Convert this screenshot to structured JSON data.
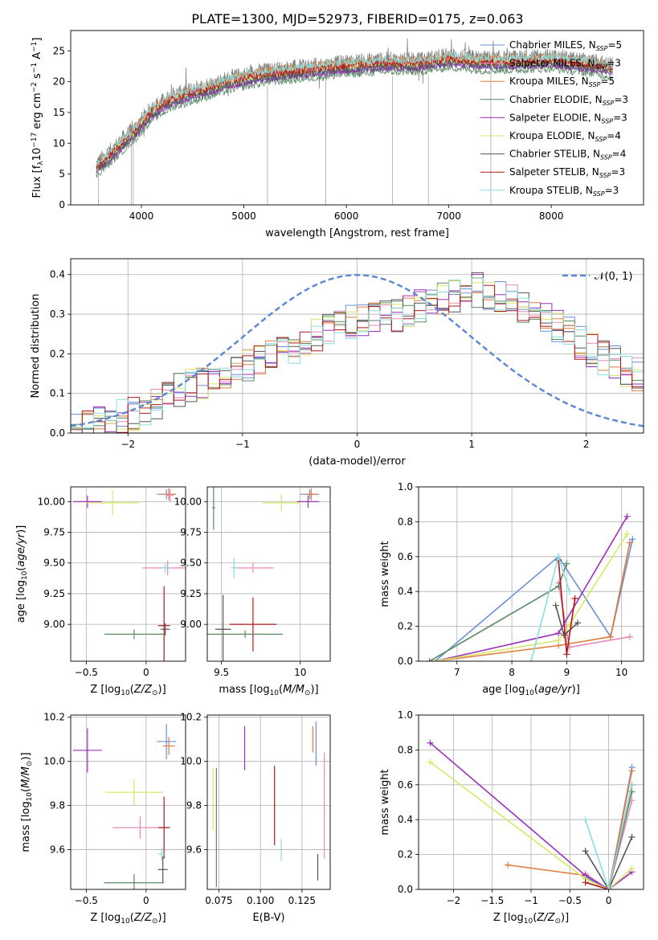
{
  "figure": {
    "title": "PLATE=1300, MJD=52973, FIBERID=0175, z=0.063"
  },
  "series": [
    {
      "name": "Chabrier MILES",
      "nssp": "5",
      "color": "#6a8fd8"
    },
    {
      "name": "Salpeter MILES",
      "nssp": "3",
      "color": "#e68ab8"
    },
    {
      "name": "Kroupa MILES",
      "nssp": "5",
      "color": "#e07b39"
    },
    {
      "name": "Chabrier ELODIE",
      "nssp": "3",
      "color": "#5a8a64"
    },
    {
      "name": "Salpeter ELODIE",
      "nssp": "3",
      "color": "#9b30b8"
    },
    {
      "name": "Kroupa ELODIE",
      "nssp": "4",
      "color": "#d6e86a"
    },
    {
      "name": "Chabrier STELIB",
      "nssp": "4",
      "color": "#555555"
    },
    {
      "name": "Salpeter STELIB",
      "nssp": "3",
      "color": "#b01818"
    },
    {
      "name": "Kroupa STELIB",
      "nssp": "3",
      "color": "#88dede"
    }
  ],
  "chart_data": [
    {
      "id": "spectrum",
      "type": "line",
      "title": "PLATE=1300, MJD=52973, FIBERID=0175, z=0.063",
      "xlabel": "wavelength [Angstrom, rest frame]",
      "ylabel": "Flux [f",
      "xlim": [
        3310,
        8900
      ],
      "ylim": [
        0,
        28.3
      ],
      "xticks": [
        4000,
        5000,
        6000,
        7000,
        8000
      ],
      "yticks": [
        0,
        5,
        10,
        15,
        20,
        25
      ],
      "legend": "upper right",
      "data_color": "#808080",
      "continuum": {
        "x": [
          3560,
          3700,
          3850,
          3950,
          4100,
          4300,
          4600,
          4900,
          5200,
          5500,
          5800,
          6100,
          6400,
          6700,
          7000,
          7300,
          7600,
          8000,
          8400,
          8600
        ],
        "y": [
          6.5,
          8.5,
          11,
          12.5,
          15.5,
          17.5,
          19,
          20.5,
          21.5,
          22,
          22.5,
          23,
          23.3,
          23.2,
          24,
          23.5,
          23.5,
          23.8,
          23,
          22.5
        ]
      },
      "spikes": [
        3580,
        3900,
        3920,
        5230,
        5800,
        6450,
        6800,
        7410
      ]
    },
    {
      "id": "residuals",
      "type": "line",
      "xlabel": "(data-model)/error",
      "ylabel": "Normed distribution",
      "xlim": [
        -2.5,
        2.5
      ],
      "ylim": [
        0,
        0.44
      ],
      "xticks": [
        -2,
        -1,
        0,
        1,
        2
      ],
      "yticks": [
        0.0,
        0.1,
        0.2,
        0.3,
        0.4
      ],
      "legend": "upper right",
      "normal_label": "𝒩(0, 1)",
      "normal_color": "#5b86d6",
      "hist_bin_width": 0.1,
      "hist_base": [
        0.03,
        0.032,
        0.035,
        0.04,
        0.045,
        0.05,
        0.06,
        0.08,
        0.1,
        0.11,
        0.12,
        0.13,
        0.14,
        0.155,
        0.165,
        0.175,
        0.185,
        0.19,
        0.2,
        0.22,
        0.24,
        0.25,
        0.26,
        0.27,
        0.28,
        0.29,
        0.295,
        0.3,
        0.3,
        0.31,
        0.32,
        0.33,
        0.34,
        0.35,
        0.36,
        0.36,
        0.35,
        0.34,
        0.33,
        0.32,
        0.3,
        0.29,
        0.27,
        0.25,
        0.23,
        0.21,
        0.19,
        0.18,
        0.16,
        0.15
      ]
    },
    {
      "id": "age-vs-Z",
      "type": "scatter",
      "xlabel": "Z [log10(Z/Z⊙)]",
      "ylabel": "age  [log10(age/yr)]",
      "xlim": [
        -0.63,
        0.33
      ],
      "ylim": [
        8.7,
        10.12
      ],
      "xticks": [
        -0.5,
        0.0
      ],
      "yticks": [
        9.0,
        9.25,
        9.5,
        9.75,
        10.0
      ],
      "points": [
        {
          "s": 4,
          "x": -0.49,
          "y": 10.0,
          "xerr": 0.12,
          "yerr": 0.05
        },
        {
          "s": 5,
          "x": -0.28,
          "y": 9.99,
          "xerr": 0.22,
          "yerr": 0.1
        },
        {
          "s": 0,
          "x": 0.17,
          "y": 10.06,
          "xerr": 0.08,
          "yerr": 0.04
        },
        {
          "s": 2,
          "x": 0.19,
          "y": 10.06,
          "xerr": 0.06,
          "yerr": 0.05
        },
        {
          "s": 1,
          "x": 0.2,
          "y": 10.05,
          "xerr": 0.03,
          "yerr": 0.05
        },
        {
          "s": 1,
          "x": 0.18,
          "y": 9.46,
          "xerr": 0.21,
          "yerr": 0.06
        },
        {
          "s": 8,
          "x": 0.16,
          "y": 9.46,
          "xerr": 0.03,
          "yerr": 0.04
        },
        {
          "s": 7,
          "x": 0.15,
          "y": 8.99,
          "xerr": 0.05,
          "yerr": 0.32
        },
        {
          "s": 6,
          "x": 0.16,
          "y": 8.96,
          "xerr": 0.04,
          "yerr": 0.05
        },
        {
          "s": 3,
          "x": -0.1,
          "y": 8.92,
          "xerr": 0.25,
          "yerr": 0.04
        }
      ]
    },
    {
      "id": "age-vs-mass",
      "type": "scatter",
      "xlabel": "mass [log10(M/M⊙)]",
      "ylabel": "",
      "xlim": [
        9.41,
        10.19
      ],
      "ylim": [
        8.7,
        10.12
      ],
      "xticks": [
        9.5,
        10.0
      ],
      "yticks": [
        9.0,
        9.25,
        9.5,
        9.75,
        10.0
      ],
      "points": [
        {
          "s": 3,
          "x": 9.45,
          "y": 9.95,
          "xerr": 0.01,
          "yerr": 0.18
        },
        {
          "s": 5,
          "x": 9.88,
          "y": 9.99,
          "xerr": 0.12,
          "yerr": 0.07
        },
        {
          "s": 4,
          "x": 10.05,
          "y": 10.0,
          "xerr": 0.07,
          "yerr": 0.05
        },
        {
          "s": 0,
          "x": 10.06,
          "y": 10.06,
          "xerr": 0.06,
          "yerr": 0.04
        },
        {
          "s": 2,
          "x": 10.07,
          "y": 10.06,
          "xerr": 0.04,
          "yerr": 0.05
        },
        {
          "s": 1,
          "x": 9.7,
          "y": 9.46,
          "xerr": 0.13,
          "yerr": 0.04
        },
        {
          "s": 8,
          "x": 9.58,
          "y": 9.46,
          "xerr": 0.02,
          "yerr": 0.08
        },
        {
          "s": 7,
          "x": 9.7,
          "y": 9.0,
          "xerr": 0.15,
          "yerr": 0.22
        },
        {
          "s": 6,
          "x": 9.51,
          "y": 8.96,
          "xerr": 0.05,
          "yerr": 0.28
        },
        {
          "s": 3,
          "x": 9.65,
          "y": 8.92,
          "xerr": 0.24,
          "yerr": 0.03
        }
      ]
    },
    {
      "id": "weight-vs-age",
      "type": "line",
      "xlabel": "age  [log10(age/yr)]",
      "ylabel": "mass weight",
      "xlim": [
        6.3,
        10.4
      ],
      "ylim": [
        0,
        1.0
      ],
      "xticks": [
        7,
        8,
        9,
        10
      ],
      "yticks": [
        0.0,
        0.2,
        0.4,
        0.6,
        0.8,
        1.0
      ],
      "series_points": [
        {
          "s": 0,
          "x": [
            6.6,
            8.85,
            9.8,
            10.2
          ],
          "y": [
            0.0,
            0.6,
            0.14,
            0.7
          ]
        },
        {
          "s": 1,
          "x": [
            8.85,
            9.05,
            10.15
          ],
          "y": [
            0.45,
            0.08,
            0.14
          ]
        },
        {
          "s": 2,
          "x": [
            6.6,
            8.85,
            9.8,
            10.15
          ],
          "y": [
            0.0,
            0.09,
            0.14,
            0.68
          ]
        },
        {
          "s": 3,
          "x": [
            6.5,
            8.85,
            9.0
          ],
          "y": [
            0.0,
            0.43,
            0.56
          ]
        },
        {
          "s": 4,
          "x": [
            6.6,
            8.85,
            10.1
          ],
          "y": [
            0.0,
            0.16,
            0.83
          ]
        },
        {
          "s": 5,
          "x": [
            6.6,
            8.85,
            9.05,
            10.1
          ],
          "y": [
            0.0,
            0.12,
            0.21,
            0.73
          ]
        },
        {
          "s": 6,
          "x": [
            8.8,
            8.95,
            9.2
          ],
          "y": [
            0.32,
            0.15,
            0.22
          ]
        },
        {
          "s": 7,
          "x": [
            8.85,
            9.0,
            9.15
          ],
          "y": [
            0.58,
            0.04,
            0.36
          ]
        },
        {
          "s": 8,
          "x": [
            8.35,
            8.85,
            9.05
          ],
          "y": [
            0.0,
            0.6,
            0.4
          ]
        }
      ]
    },
    {
      "id": "mass-vs-Z",
      "type": "scatter",
      "xlabel": "Z [log10(Z/Z⊙)]",
      "ylabel": "mass [log10(M/M⊙)]",
      "xlim": [
        -0.63,
        0.33
      ],
      "ylim": [
        9.42,
        10.21
      ],
      "xticks": [
        -0.5,
        0.0
      ],
      "yticks": [
        9.6,
        9.8,
        10.0,
        10.2
      ],
      "points": [
        {
          "s": 4,
          "x": -0.49,
          "y": 10.05,
          "xerr": 0.12,
          "yerr": 0.1
        },
        {
          "s": 0,
          "x": 0.17,
          "y": 10.09,
          "xerr": 0.08,
          "yerr": 0.08
        },
        {
          "s": 2,
          "x": 0.19,
          "y": 10.07,
          "xerr": 0.05,
          "yerr": 0.04
        },
        {
          "s": 5,
          "x": -0.1,
          "y": 9.86,
          "xerr": 0.24,
          "yerr": 0.06
        },
        {
          "s": 1,
          "x": -0.05,
          "y": 9.7,
          "xerr": 0.23,
          "yerr": 0.05
        },
        {
          "s": 7,
          "x": 0.15,
          "y": 9.7,
          "xerr": 0.05,
          "yerr": 0.14
        },
        {
          "s": 8,
          "x": 0.13,
          "y": 9.58,
          "xerr": 0.03,
          "yerr": 0.03
        },
        {
          "s": 6,
          "x": 0.14,
          "y": 9.51,
          "xerr": 0.04,
          "yerr": 0.06
        },
        {
          "s": 3,
          "x": -0.1,
          "y": 9.45,
          "xerr": 0.25,
          "yerr": 0.04
        }
      ]
    },
    {
      "id": "mass-vs-EBV",
      "type": "scatter",
      "xlabel": "E(B-V)",
      "ylabel": "",
      "xlim": [
        0.068,
        0.142
      ],
      "ylim": [
        9.42,
        10.21
      ],
      "xticks": [
        0.075,
        0.1,
        0.125
      ],
      "xtick_labels": [
        "0.075",
        "0.100",
        "0.125"
      ],
      "yticks": [
        9.6,
        9.8,
        10.0,
        10.2
      ],
      "points": [
        {
          "s": 5,
          "x": 0.0715,
          "y": 9.83,
          "xerr": 0,
          "yerr": 0.14
        },
        {
          "s": 3,
          "x": 0.0735,
          "y": 9.7,
          "xerr": 0,
          "yerr": 0.27
        },
        {
          "s": 4,
          "x": 0.0905,
          "y": 10.06,
          "xerr": 0,
          "yerr": 0.1
        },
        {
          "s": 7,
          "x": 0.1085,
          "y": 9.8,
          "xerr": 0,
          "yerr": 0.18
        },
        {
          "s": 8,
          "x": 0.1125,
          "y": 9.6,
          "xerr": 0,
          "yerr": 0.05
        },
        {
          "s": 2,
          "x": 0.1315,
          "y": 10.1,
          "xerr": 0,
          "yerr": 0.06
        },
        {
          "s": 0,
          "x": 0.1335,
          "y": 10.08,
          "xerr": 0,
          "yerr": 0.1
        },
        {
          "s": 6,
          "x": 0.1345,
          "y": 9.52,
          "xerr": 0,
          "yerr": 0.06
        },
        {
          "s": 1,
          "x": 0.1385,
          "y": 9.8,
          "xerr": 0,
          "yerr": 0.24
        }
      ]
    },
    {
      "id": "weight-vs-Z",
      "type": "line",
      "xlabel": "Z [log10(Z/Z⊙)]",
      "ylabel": "mass weight",
      "xlim": [
        -2.45,
        0.45
      ],
      "ylim": [
        0,
        1.0
      ],
      "xticks": [
        -2.0,
        -1.5,
        -1.0,
        -0.5,
        0.0
      ],
      "yticks": [
        0.0,
        0.2,
        0.4,
        0.6,
        0.8,
        1.0
      ],
      "series_points": [
        {
          "s": 0,
          "x": [
            -0.3,
            0.0,
            0.3
          ],
          "y": [
            0.07,
            0.0,
            0.7
          ]
        },
        {
          "s": 1,
          "x": [
            -0.3,
            0.0,
            0.3
          ],
          "y": [
            0.09,
            0.0,
            0.51
          ]
        },
        {
          "s": 2,
          "x": [
            -1.3,
            -0.3,
            0.0,
            0.3
          ],
          "y": [
            0.14,
            0.08,
            0.0,
            0.68
          ]
        },
        {
          "s": 3,
          "x": [
            -0.3,
            0.0,
            0.3
          ],
          "y": [
            0.08,
            0.0,
            0.56
          ]
        },
        {
          "s": 4,
          "x": [
            -2.3,
            -0.3,
            0.0,
            0.3
          ],
          "y": [
            0.84,
            0.08,
            0.0,
            0.1
          ]
        },
        {
          "s": 5,
          "x": [
            -2.3,
            -0.3,
            0.0,
            0.3
          ],
          "y": [
            0.73,
            0.06,
            0.0,
            0.12
          ]
        },
        {
          "s": 6,
          "x": [
            -0.3,
            0.0,
            0.3
          ],
          "y": [
            0.22,
            0.0,
            0.3
          ]
        },
        {
          "s": 7,
          "x": [
            -0.3,
            0.0,
            0.3
          ],
          "y": [
            0.04,
            0.0,
            0.6
          ]
        },
        {
          "s": 8,
          "x": [
            -0.3,
            0.0,
            0.3
          ],
          "y": [
            0.4,
            0.0,
            0.6
          ]
        }
      ]
    }
  ]
}
